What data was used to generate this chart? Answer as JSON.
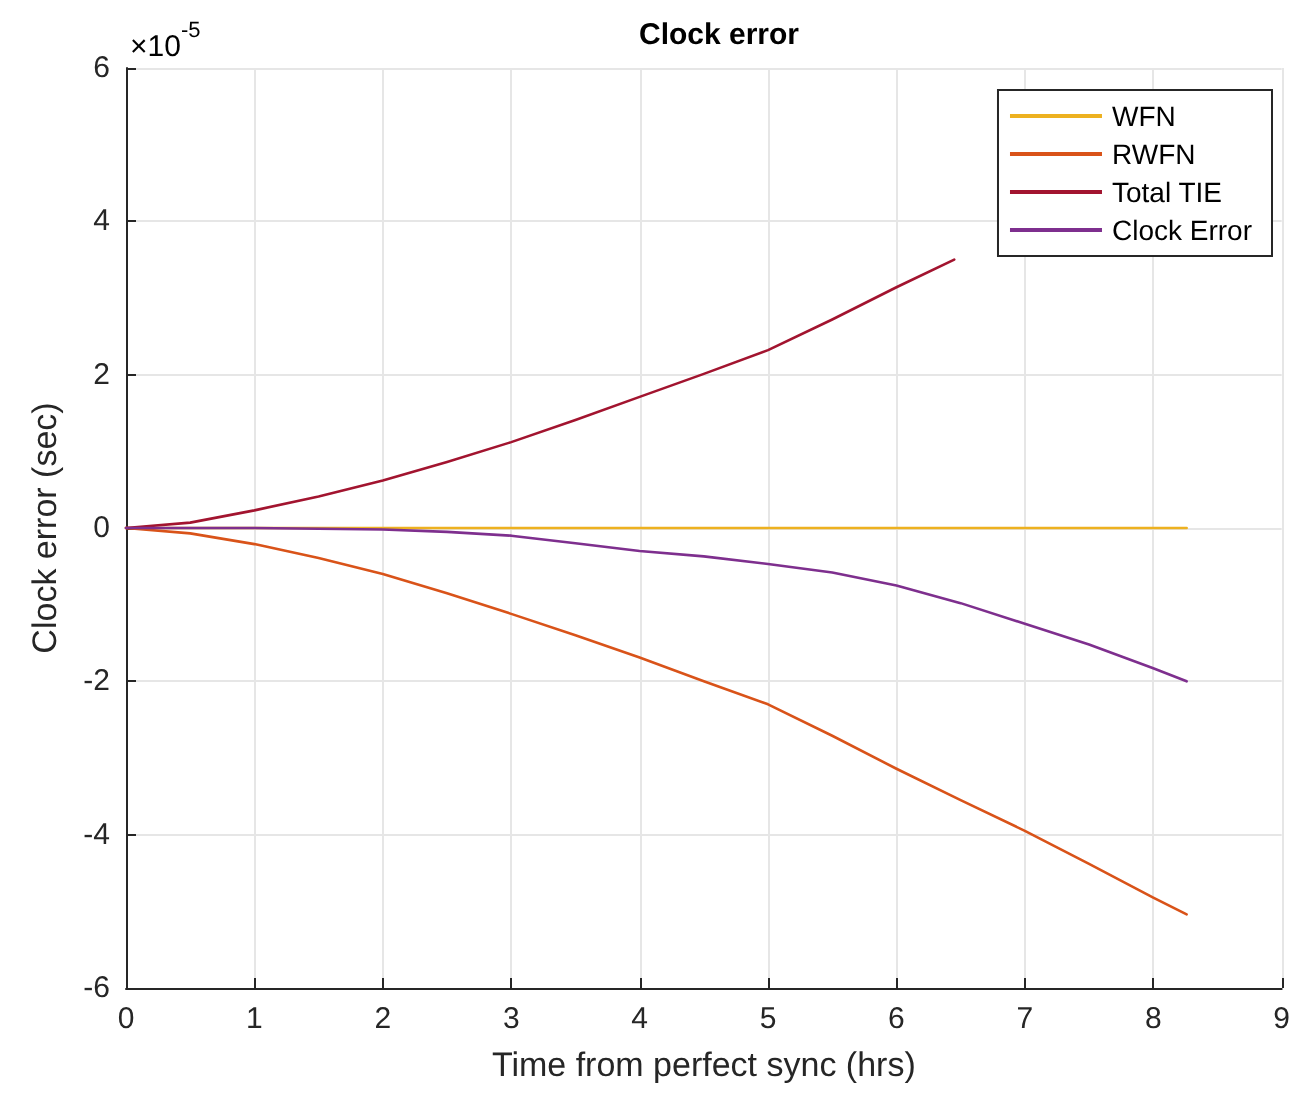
{
  "chart_data": {
    "type": "line",
    "title": "Clock error",
    "xlabel": "Time from perfect sync (hrs)",
    "ylabel": "Clock error (sec)",
    "annotations": [
      "×10$^{-5}$"
    ],
    "series": [
      {
        "name": "WFN",
        "color": "#edb120",
        "x": [
          0,
          1,
          2,
          3,
          4,
          5,
          6,
          7,
          8,
          8.26
        ],
        "values": [
          0,
          0,
          0,
          0,
          0,
          0,
          0,
          0,
          0,
          0
        ]
      },
      {
        "name": "RWFN",
        "color": "#d95319",
        "x": [
          0,
          0.5,
          1,
          1.5,
          2,
          2.5,
          3,
          3.5,
          4,
          4.5,
          5,
          5.5,
          6,
          6.5,
          7,
          7.5,
          8,
          8.26
        ],
        "values": [
          0,
          -0.07,
          -0.21,
          -0.39,
          -0.6,
          -0.85,
          -1.12,
          -1.4,
          -1.69,
          -2.0,
          -2.3,
          -2.71,
          -3.14,
          -3.55,
          -3.95,
          -4.38,
          -4.82,
          -5.04
        ]
      },
      {
        "name": "Total TIE",
        "color": "#a2142f",
        "x": [
          0,
          0.5,
          1,
          1.5,
          2,
          2.5,
          3,
          3.5,
          4,
          4.5,
          5,
          5.5,
          6,
          6.45
        ],
        "values": [
          0,
          0.07,
          0.23,
          0.41,
          0.62,
          0.86,
          1.12,
          1.41,
          1.71,
          2.01,
          2.32,
          2.72,
          3.14,
          3.5
        ]
      },
      {
        "name": "Clock Error",
        "color": "#7e2f8e",
        "x": [
          0,
          1,
          2,
          2.5,
          3,
          3.5,
          4,
          4.5,
          5,
          5.5,
          6,
          6.5,
          7,
          7.5,
          8,
          8.26
        ],
        "values": [
          0,
          0,
          -0.02,
          -0.05,
          -0.1,
          -0.2,
          -0.3,
          -0.37,
          -0.47,
          -0.58,
          -0.75,
          -0.98,
          -1.25,
          -1.52,
          -1.83,
          -2.0
        ]
      }
    ],
    "xlim": [
      0,
      9
    ],
    "xticks": [
      0,
      1,
      2,
      3,
      4,
      5,
      6,
      7,
      8,
      9
    ],
    "ylim": [
      -6,
      6
    ],
    "yticks": [
      -6,
      -4,
      -2,
      0,
      2,
      4,
      6
    ],
    "grid": true,
    "legend": "top right",
    "marker": "none",
    "line_style": "solid"
  }
}
